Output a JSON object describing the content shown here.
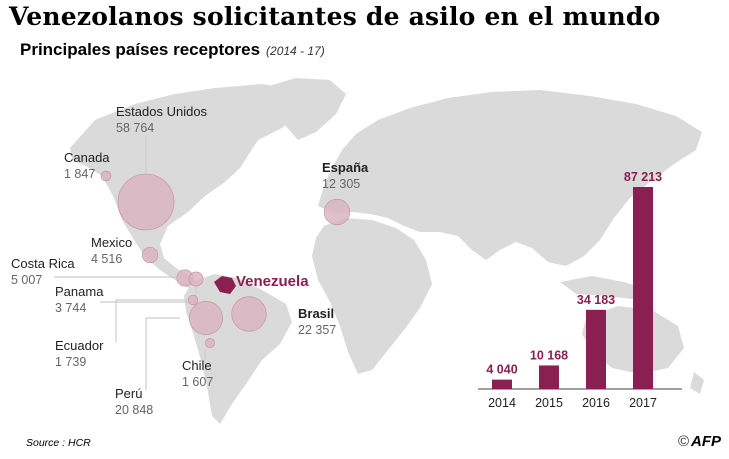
{
  "title": "Venezolanos solicitantes de asilo en el mundo",
  "subtitle": "Principales países receptores",
  "period": "(2014 - 17)",
  "origin_label": "Venezuela",
  "source": "Source : HCR",
  "credit": {
    "symbol": "©",
    "brand": "AFP"
  },
  "colors": {
    "bar": "#8a1f52",
    "bubble": "#d9b3c0",
    "bubble_stroke": "#c48aa0",
    "land": "#dadada",
    "origin": "#8a1f52",
    "label_name": "#222222",
    "label_value": "#666666",
    "leader": "#cccccc"
  },
  "chart_data": [
    {
      "type": "bar",
      "categories": [
        "2014",
        "2015",
        "2016",
        "2017"
      ],
      "values": [
        4040,
        10168,
        34183,
        87213
      ],
      "value_labels": [
        "4 040",
        "10 168",
        "34 183",
        "87 213"
      ],
      "ylim": [
        0,
        87213
      ],
      "grid": false,
      "legend": "none"
    },
    {
      "type": "bubble_map",
      "series": [
        {
          "country": "Estados Unidos",
          "value": 58764,
          "value_label": "58 764",
          "bold": false
        },
        {
          "country": "Canada",
          "value": 1847,
          "value_label": "1 847",
          "bold": false
        },
        {
          "country": "España",
          "value": 12305,
          "value_label": "12 305",
          "bold": true
        },
        {
          "country": "Mexico",
          "value": 4516,
          "value_label": "4 516",
          "bold": false
        },
        {
          "country": "Costa Rica",
          "value": 5007,
          "value_label": "5 007",
          "bold": false
        },
        {
          "country": "Panama",
          "value": 3744,
          "value_label": "3 744",
          "bold": false
        },
        {
          "country": "Ecuador",
          "value": 1739,
          "value_label": "1 739",
          "bold": false
        },
        {
          "country": "Perú",
          "value": 20848,
          "value_label": "20 848",
          "bold": false
        },
        {
          "country": "Chile",
          "value": 1607,
          "value_label": "1 607",
          "bold": false
        },
        {
          "country": "Brasil",
          "value": 22357,
          "value_label": "22 357",
          "bold": true
        }
      ]
    }
  ]
}
